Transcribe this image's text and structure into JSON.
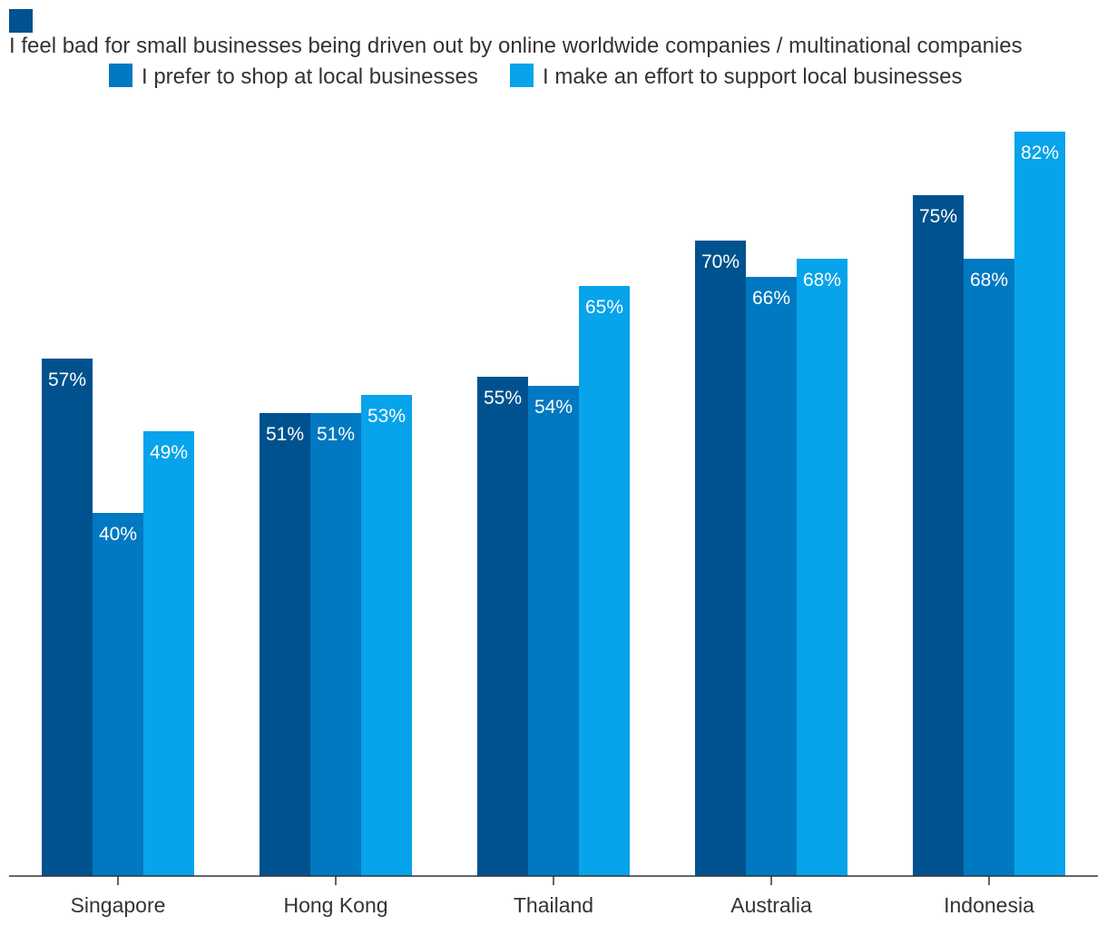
{
  "chart_data": {
    "type": "bar",
    "categories": [
      "Singapore",
      "Hong Kong",
      "Thailand",
      "Australia",
      "Indonesia"
    ],
    "series": [
      {
        "name": "I feel bad for small businesses being driven out by online worldwide companies / multinational companies",
        "color": "#00528f",
        "values": [
          57,
          51,
          55,
          70,
          75
        ],
        "labels": [
          "57%",
          "51%",
          "55%",
          "70%",
          "75%"
        ]
      },
      {
        "name": "I prefer to shop at local businesses",
        "color": "#0079c2",
        "values": [
          40,
          51,
          54,
          66,
          68
        ],
        "labels": [
          "40%",
          "51%",
          "54%",
          "66%",
          "68%"
        ]
      },
      {
        "name": "I make an effort to support local businesses",
        "color": "#07a3eb",
        "values": [
          49,
          53,
          65,
          68,
          82
        ],
        "labels": [
          "49%",
          "53%",
          "65%",
          "68%",
          "82%"
        ]
      }
    ],
    "ylim": [
      0,
      82
    ],
    "grid": false,
    "legend_position": "top",
    "title": "",
    "xlabel": "",
    "ylabel": ""
  }
}
